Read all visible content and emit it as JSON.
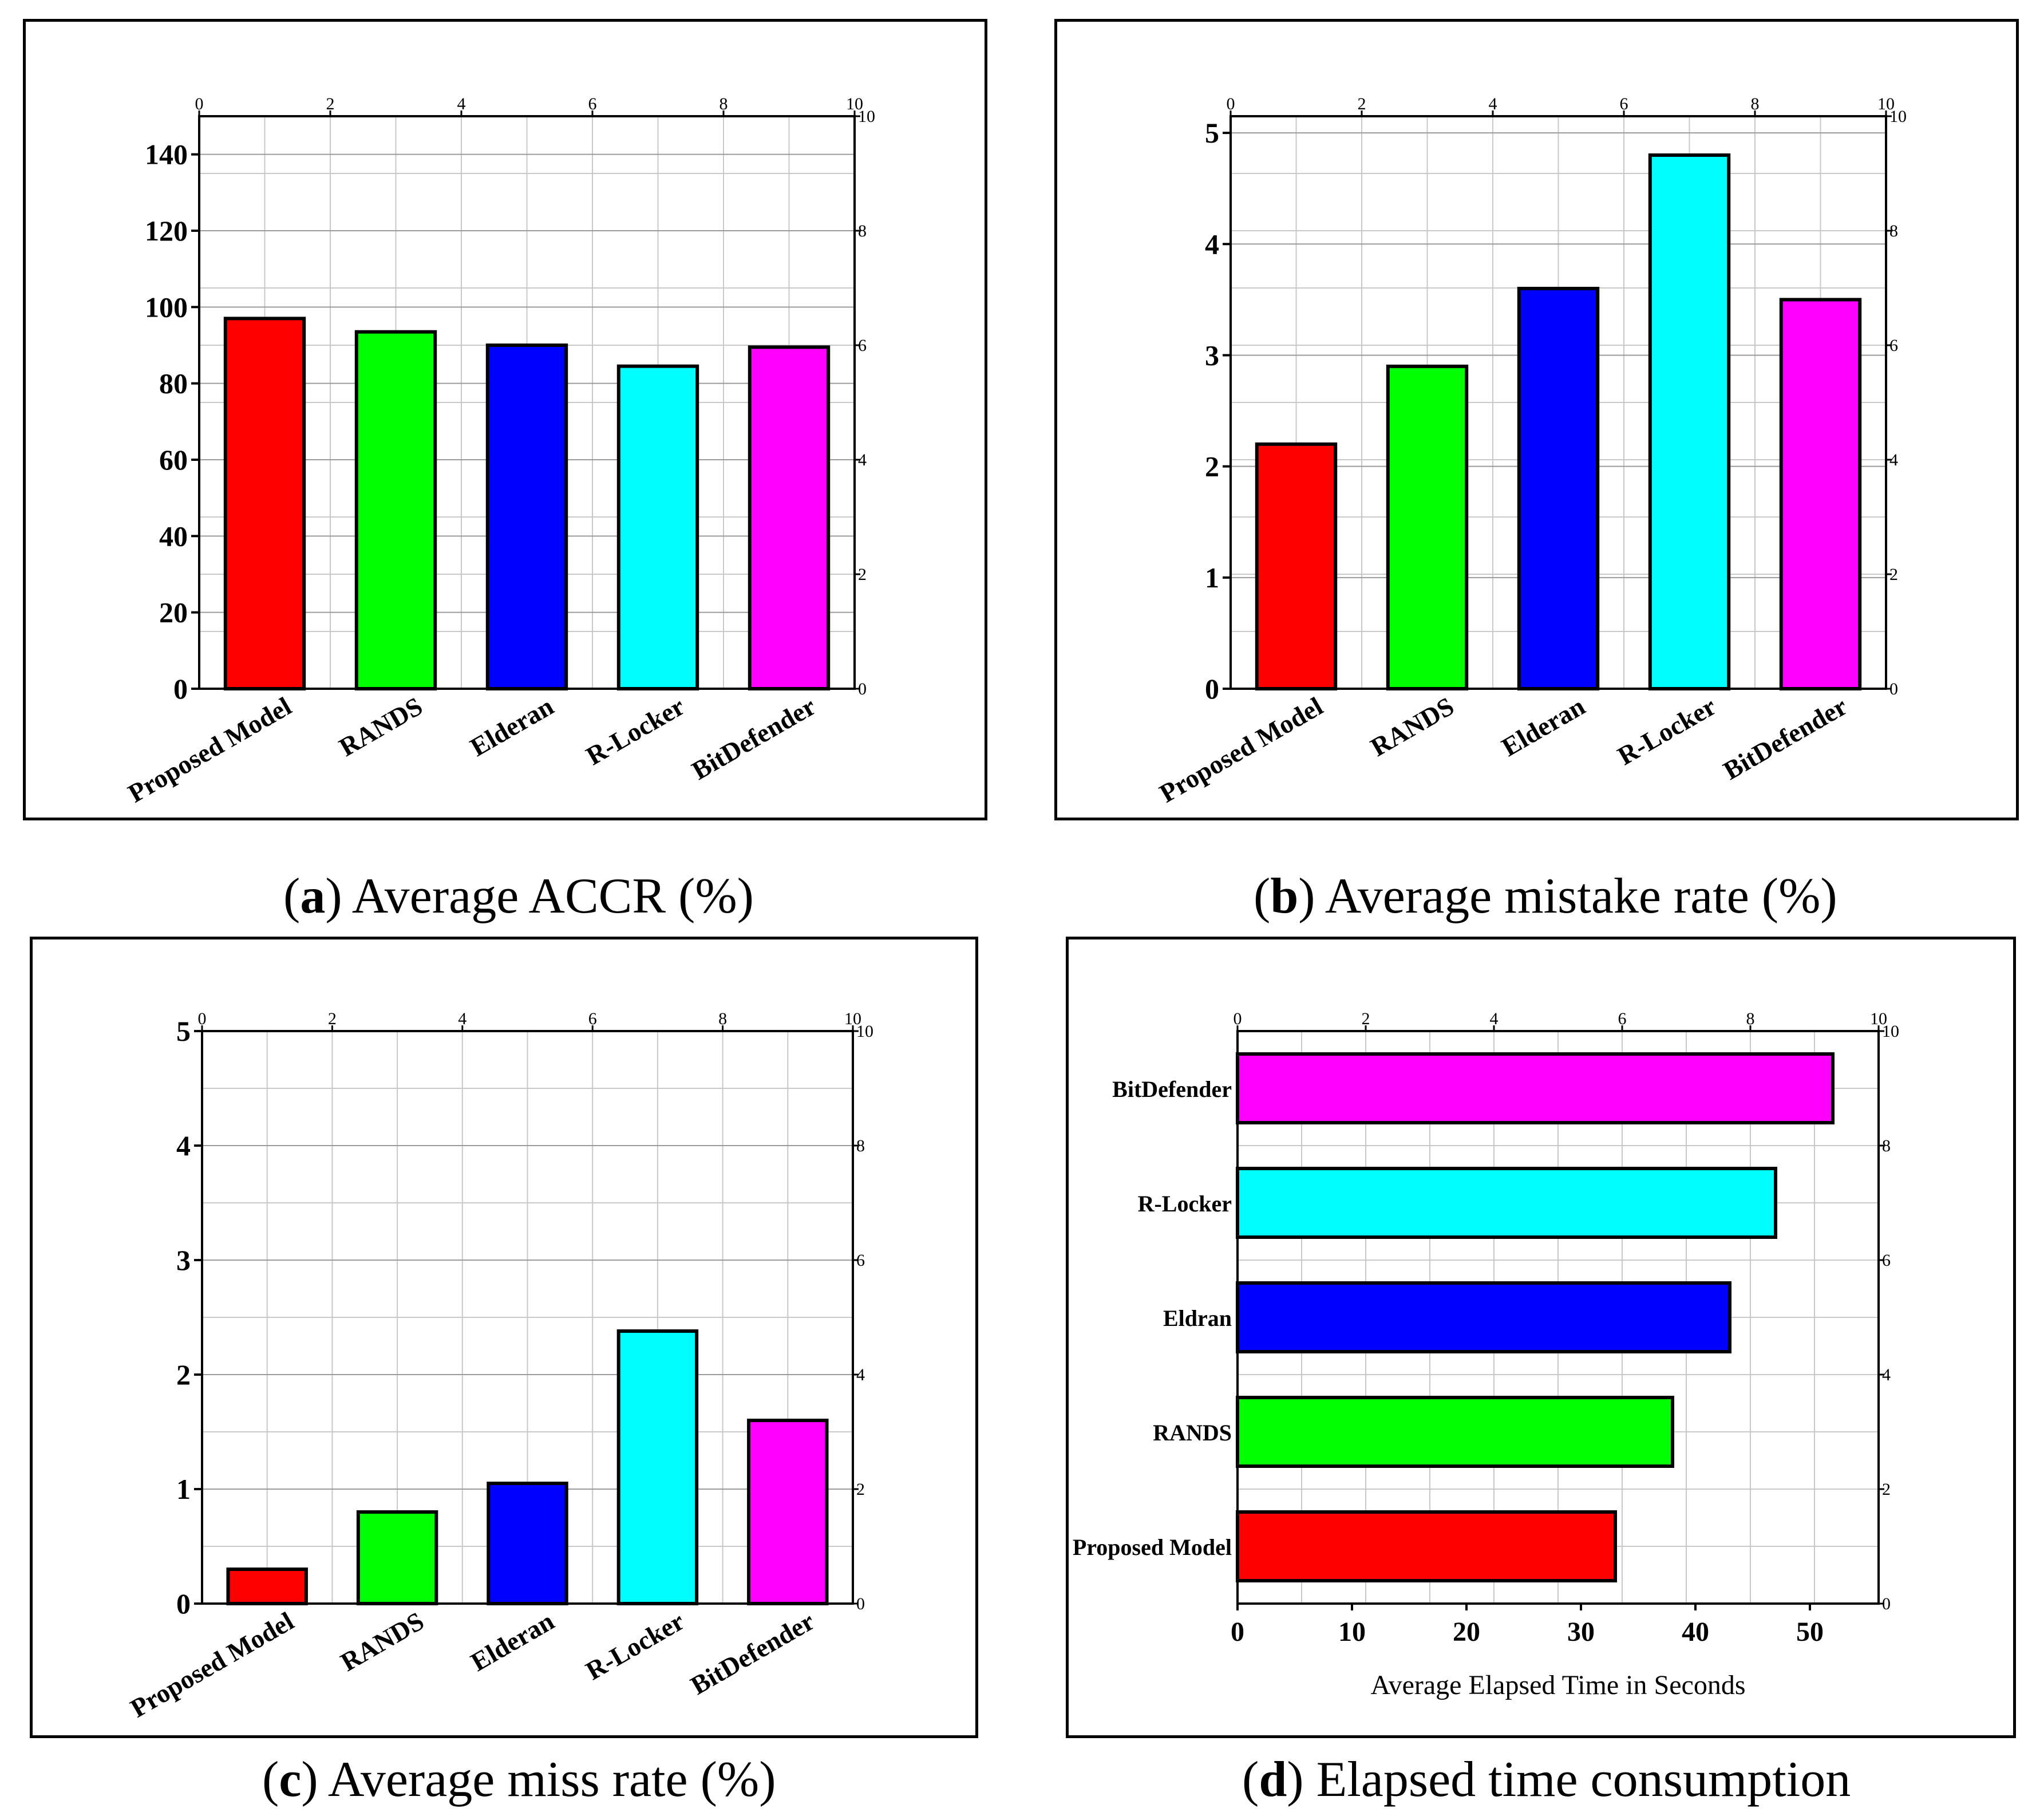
{
  "colors": {
    "red": "#ff0000",
    "green": "#00ff00",
    "blue": "#0000ff",
    "cyan": "#00ffff",
    "magenta": "#ff00ff",
    "grid": "#c8c8c8"
  },
  "captions": [
    {
      "letter": "a",
      "text": " Average ACCR (%)"
    },
    {
      "letter": "b",
      "text": " Average mistake rate (%)"
    },
    {
      "letter": "c",
      "text": " Average miss rate (%)"
    },
    {
      "letter": "d",
      "text": " Elapsed time consumption"
    }
  ],
  "chart_data": [
    {
      "type": "bar",
      "orientation": "vertical",
      "categories": [
        "Proposed Model",
        "RANDS",
        "Elderan",
        "R-Locker",
        "BitDefender"
      ],
      "values": [
        97,
        93.5,
        90,
        84.5,
        89.5
      ],
      "colors": [
        "#ff0000",
        "#00ff00",
        "#0000ff",
        "#00ffff",
        "#ff00ff"
      ],
      "ylim": [
        0,
        150
      ],
      "yticks": [
        0,
        20,
        40,
        60,
        80,
        100,
        120,
        140
      ],
      "secondary_top_ticks": [
        "0",
        "2",
        "4",
        "6",
        "8",
        "10"
      ],
      "secondary_right_ticks": [
        "0",
        "2",
        "4",
        "6",
        "8",
        "10"
      ]
    },
    {
      "type": "bar",
      "orientation": "vertical",
      "categories": [
        "Proposed Model",
        "RANDS",
        "Elderan",
        "R-Locker",
        "BitDefender"
      ],
      "values": [
        2.2,
        2.9,
        3.6,
        4.8,
        3.5
      ],
      "colors": [
        "#ff0000",
        "#00ff00",
        "#0000ff",
        "#00ffff",
        "#ff00ff"
      ],
      "ylim": [
        0,
        5.15
      ],
      "yticks": [
        0,
        1,
        2,
        3,
        4,
        5
      ],
      "secondary_top_ticks": [
        "0",
        "2",
        "4",
        "6",
        "8",
        "10"
      ],
      "secondary_right_ticks": [
        "0",
        "2",
        "4",
        "6",
        "8",
        "10"
      ]
    },
    {
      "type": "bar",
      "orientation": "vertical",
      "categories": [
        "Proposed Model",
        "RANDS",
        "Elderan",
        "R-Locker",
        "BitDefender"
      ],
      "values": [
        0.3,
        0.8,
        1.05,
        2.38,
        1.6
      ],
      "colors": [
        "#ff0000",
        "#00ff00",
        "#0000ff",
        "#00ffff",
        "#ff00ff"
      ],
      "ylim": [
        0,
        5
      ],
      "yticks": [
        0,
        1,
        2,
        3,
        4,
        5
      ],
      "secondary_top_ticks": [
        "0",
        "2",
        "4",
        "6",
        "8",
        "10"
      ],
      "secondary_right_ticks": [
        "0",
        "2",
        "4",
        "6",
        "8",
        "10"
      ]
    },
    {
      "type": "bar",
      "orientation": "horizontal",
      "categories": [
        "Proposed Model",
        "RANDS",
        "Eldran",
        "R-Locker",
        "BitDefender"
      ],
      "values": [
        33,
        38,
        43,
        47,
        52
      ],
      "colors": [
        "#ff0000",
        "#00ff00",
        "#0000ff",
        "#00ffff",
        "#ff00ff"
      ],
      "xlim": [
        0,
        56
      ],
      "xticks": [
        0,
        10,
        20,
        30,
        40,
        50
      ],
      "xlabel": "Average Elapsed Time in Seconds",
      "secondary_top_ticks": [
        "0",
        "2",
        "4",
        "6",
        "8",
        "10"
      ],
      "secondary_right_ticks": [
        "0",
        "2",
        "4",
        "6",
        "8",
        "10"
      ]
    }
  ]
}
